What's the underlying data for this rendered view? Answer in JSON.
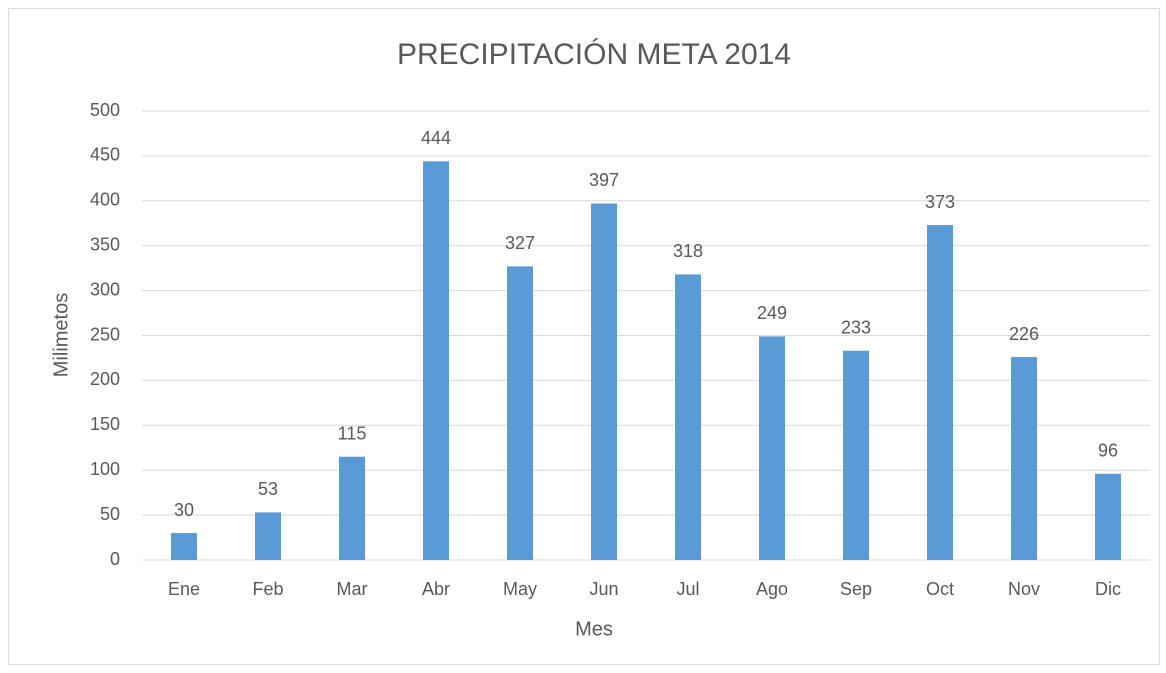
{
  "chart_data": {
    "type": "bar",
    "title": "PRECIPITACIÓN META 2014",
    "x_label": "Mes",
    "y_label": "Milimetos",
    "categories": [
      "Ene",
      "Feb",
      "Mar",
      "Abr",
      "May",
      "Jun",
      "Jul",
      "Ago",
      "Sep",
      "Oct",
      "Nov",
      "Dic"
    ],
    "values": [
      30,
      53,
      115,
      444,
      327,
      397,
      318,
      249,
      233,
      373,
      226,
      96
    ],
    "color": "#5b9bd5",
    "ylim": [
      0,
      500
    ],
    "yticks": [
      0,
      50,
      100,
      150,
      200,
      250,
      300,
      350,
      400,
      450,
      500
    ],
    "grid": true
  }
}
